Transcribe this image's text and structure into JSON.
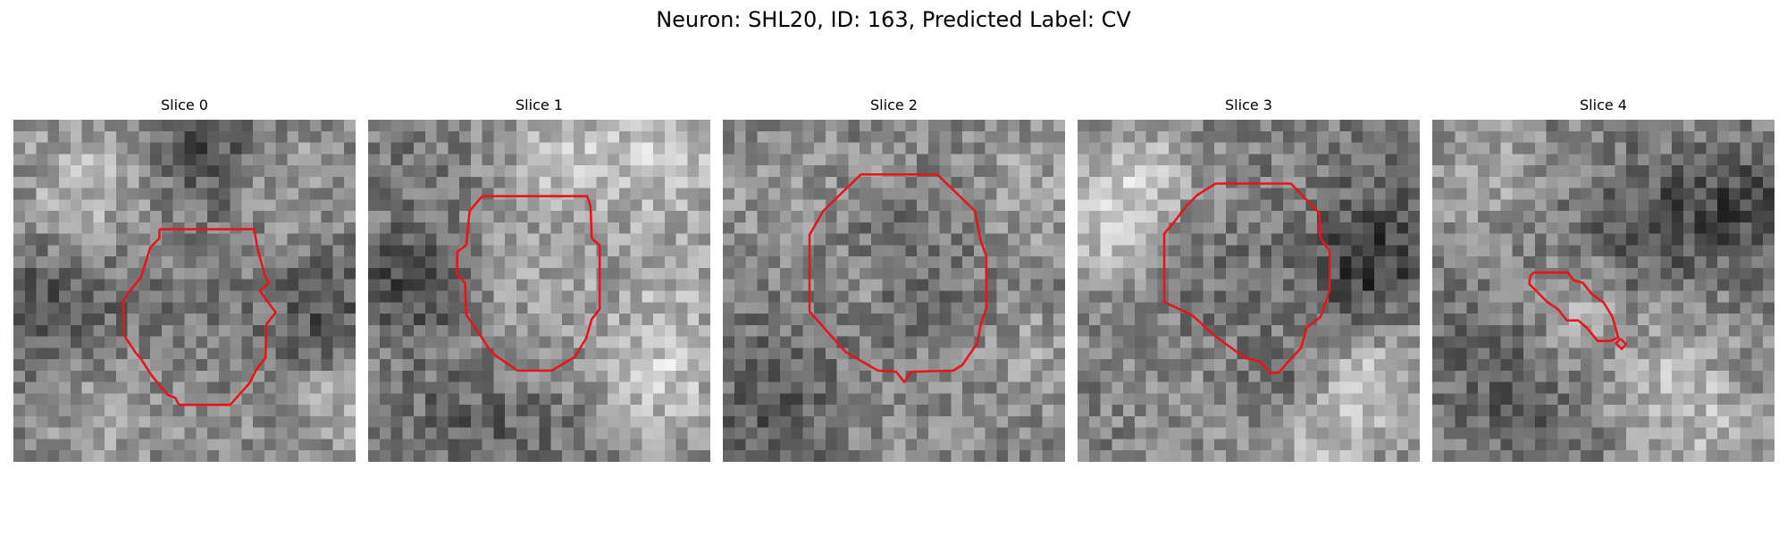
{
  "figure": {
    "title": "Neuron: SHL20, ID: 163, Predicted Label: CV"
  },
  "slices": [
    {
      "title": "Slice 0"
    },
    {
      "title": "Slice 1"
    },
    {
      "title": "Slice 2"
    },
    {
      "title": "Slice 3"
    },
    {
      "title": "Slice 4"
    }
  ],
  "colors": {
    "contour": "#e8141c",
    "background": "#ffffff"
  }
}
